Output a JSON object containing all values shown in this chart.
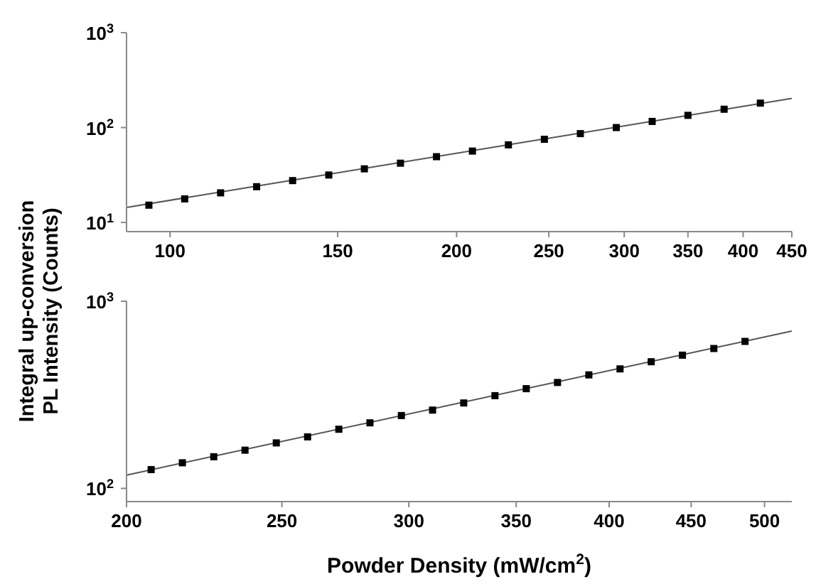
{
  "chart_data": [
    {
      "type": "scatter",
      "ylabel": "Integral up-conversion\nPL Intensity (Counts)",
      "log": "xy",
      "grid": false,
      "legend": false,
      "xlim": [
        90,
        450
      ],
      "xticks": [
        100,
        150,
        200,
        250,
        300,
        350,
        400,
        450
      ],
      "ylim": [
        8,
        1000
      ],
      "yticks": [
        {
          "value": 10,
          "label": "10$^{1}$"
        },
        {
          "value": 100,
          "label": "10$^{2}$"
        },
        {
          "value": 1000,
          "label": "10$^{3}$"
        }
      ],
      "series": [
        {
          "marker": "square",
          "color": "#000000",
          "x": [
            95,
            103.6,
            113,
            123.3,
            134.5,
            146.8,
            160,
            174.6,
            190.5,
            207.8,
            226.7,
            247.3,
            269.8,
            294.3,
            321,
            350,
            382,
            417
          ],
          "values": [
            15.2,
            17.7,
            20.5,
            23.8,
            27.6,
            31.6,
            36.7,
            42.1,
            49.3,
            56.5,
            65.7,
            75.2,
            86.3,
            100,
            116,
            134.5,
            156,
            181
          ]
        },
        {
          "type": "line",
          "marker": "none",
          "color": "#555555",
          "x": [
            90,
            450
          ],
          "values": [
            14.4,
            203
          ]
        }
      ]
    },
    {
      "type": "scatter",
      "xlabel": "Powder Density (mW/cm$^{2}$)",
      "log": "xy",
      "grid": false,
      "legend": false,
      "xlim": [
        200,
        520
      ],
      "xticks": [
        200,
        250,
        300,
        350,
        400,
        450,
        500
      ],
      "ylim": [
        85,
        1000
      ],
      "yticks": [
        {
          "value": 100,
          "label": "10$^{2}$"
        },
        {
          "value": 1000,
          "label": "10$^{3}$"
        }
      ],
      "series": [
        {
          "marker": "square",
          "color": "#000000",
          "x": [
            207.2,
            216.7,
            226.7,
            237.1,
            248,
            259.4,
            271.3,
            283.7,
            296.8,
            310.4,
            324.6,
            339.5,
            355.1,
            371.4,
            388.5,
            406.3,
            424.9,
            444.4,
            464.9,
            486.2
          ],
          "values": [
            126,
            137,
            147.6,
            160,
            175,
            188.5,
            207,
            224,
            245,
            262,
            286,
            313,
            341,
            368,
            404,
            435,
            475,
            515,
            559,
            610
          ]
        },
        {
          "type": "line",
          "marker": "none",
          "color": "#555555",
          "x": [
            200,
            520
          ],
          "values": [
            117.8,
            693
          ]
        }
      ]
    }
  ]
}
